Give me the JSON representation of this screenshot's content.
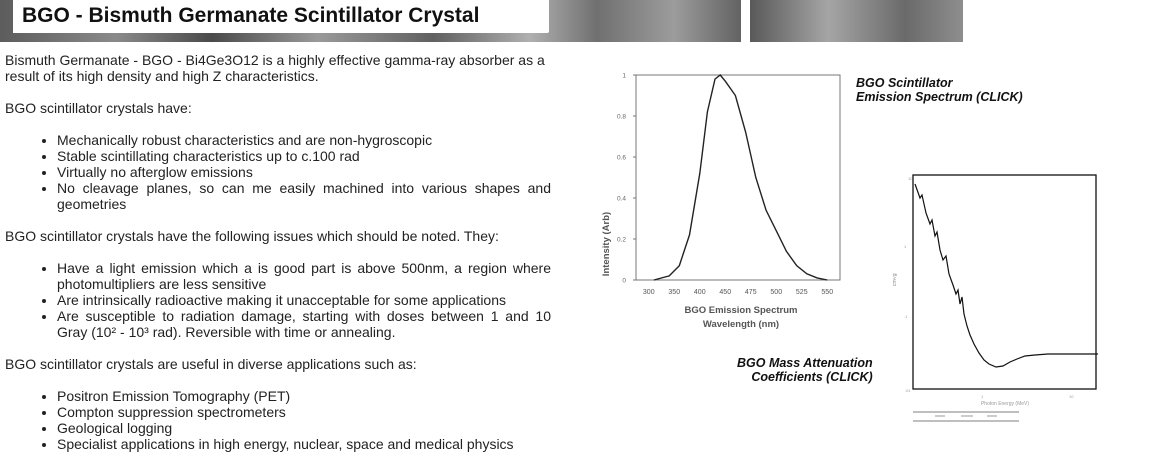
{
  "title": "BGO - Bismuth Germanate Scintillator Crystal",
  "intro": "Bismuth Germanate - BGO - Bi4Ge3O12 is a highly effective gamma-ray absorber as a result  of its high density and high Z characteristics.",
  "have_heading": "BGO scintillator crystals have:",
  "have_items": [
    "Mechanically robust characteristics and are non-hygroscopic",
    "Stable scintillating characteristics up to c.100 rad",
    "Virtually no afterglow emissions",
    "No cleavage planes, so can me easily machined into various shapes and geometries"
  ],
  "issues_heading": "BGO scintillator crystals have the following issues which should be noted. They:",
  "issues_items": [
    "Have a light emission which a is good part is above 500nm, a region where photomultipliers are less sensitive",
    "Are intrinsically radioactive making it unacceptable for some applications",
    "Are susceptible to radiation damage, starting with doses between 1 and 10 Gray (10² - 10³ rad). Reversible with time or annealing."
  ],
  "uses_heading": "BGO scintillator crystals are useful in diverse applications such as:",
  "uses_items": [
    "Positron Emission Tomography (PET)",
    "Compton suppression spectrometers",
    "Geological logging",
    "Specialist applications in high energy, nuclear, space and medical physics"
  ],
  "captions": {
    "emission_line1": "BGO Scintillator",
    "emission_line2": "Emission Spectrum (CLICK)",
    "attenuation_line1": "BGO Mass Attenuation",
    "attenuation_line2": "Coefficients (CLICK)"
  },
  "chart_data": [
    {
      "type": "line",
      "title": "BGO Emission Spectrum",
      "xlabel": "Wavelength (nm)",
      "ylabel": "Intensity (Arb)",
      "x_ticks": [
        300,
        350,
        400,
        450,
        475,
        500,
        525,
        550
      ],
      "y_ticks": [
        "0",
        "0.2",
        "0.4",
        "0.6",
        "0.8",
        "1"
      ],
      "x": [
        310,
        340,
        360,
        380,
        400,
        415,
        430,
        440,
        450,
        460,
        470,
        480,
        490,
        500,
        510,
        520,
        530,
        540,
        550
      ],
      "y": [
        0,
        0.02,
        0.07,
        0.22,
        0.52,
        0.82,
        0.98,
        1.0,
        0.97,
        0.9,
        0.72,
        0.5,
        0.34,
        0.24,
        0.14,
        0.07,
        0.03,
        0.01,
        0.0
      ],
      "line_color": "#222222"
    },
    {
      "type": "line",
      "title": "BGO Mass Attenuation Coefficients",
      "xlabel": "Photon Energy (MeV)",
      "ylabel": "",
      "y_scale": "log",
      "x_scale": "log",
      "line_color": "#111111"
    }
  ]
}
